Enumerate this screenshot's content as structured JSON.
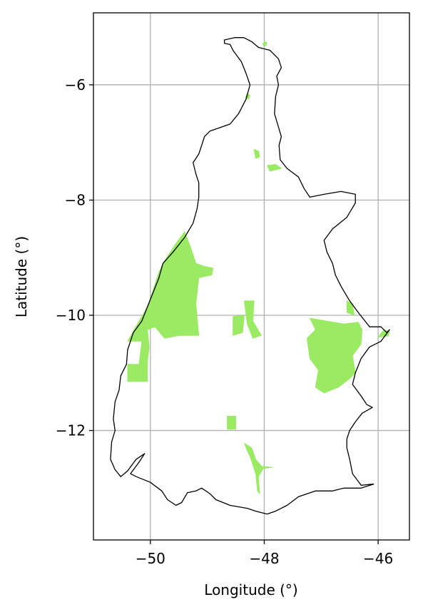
{
  "colors": {
    "background": "#ffffff",
    "protected_area_fill": "#9aea64",
    "boundary_stroke": "#000000",
    "grid": "#b0b0b0"
  },
  "chart_data": {
    "type": "map",
    "title": "",
    "xlabel": "Longitude (°)",
    "ylabel": "Latitude (°)",
    "xlim": [
      -51.0,
      -45.45
    ],
    "ylim": [
      -13.9,
      -4.75
    ],
    "grid": true,
    "x_ticks": [
      {
        "value": -50,
        "label": "−50"
      },
      {
        "value": -48,
        "label": "−48"
      },
      {
        "value": -46,
        "label": "−46"
      }
    ],
    "y_ticks": [
      {
        "value": -6,
        "label": "−6"
      },
      {
        "value": -8,
        "label": "−8"
      },
      {
        "value": -10,
        "label": "−10"
      },
      {
        "value": -12,
        "label": "−12"
      }
    ],
    "boundary": [
      [
        -48.7,
        -5.22
      ],
      [
        -48.52,
        -5.18
      ],
      [
        -48.36,
        -5.18
      ],
      [
        -48.22,
        -5.25
      ],
      [
        -48.1,
        -5.35
      ],
      [
        -47.9,
        -5.4
      ],
      [
        -47.75,
        -5.55
      ],
      [
        -47.7,
        -5.7
      ],
      [
        -47.78,
        -5.85
      ],
      [
        -47.75,
        -6.0
      ],
      [
        -47.8,
        -6.2
      ],
      [
        -47.82,
        -6.5
      ],
      [
        -47.76,
        -6.7
      ],
      [
        -47.7,
        -6.9
      ],
      [
        -47.74,
        -7.05
      ],
      [
        -47.72,
        -7.3
      ],
      [
        -47.6,
        -7.45
      ],
      [
        -47.4,
        -7.6
      ],
      [
        -47.3,
        -7.8
      ],
      [
        -47.2,
        -7.95
      ],
      [
        -46.95,
        -7.9
      ],
      [
        -46.65,
        -7.85
      ],
      [
        -46.4,
        -7.9
      ],
      [
        -46.4,
        -8.05
      ],
      [
        -46.55,
        -8.3
      ],
      [
        -46.8,
        -8.5
      ],
      [
        -46.95,
        -8.7
      ],
      [
        -46.9,
        -8.9
      ],
      [
        -46.8,
        -9.1
      ],
      [
        -46.75,
        -9.3
      ],
      [
        -46.65,
        -9.5
      ],
      [
        -46.5,
        -9.75
      ],
      [
        -46.35,
        -9.95
      ],
      [
        -46.15,
        -10.2
      ],
      [
        -45.95,
        -10.2
      ],
      [
        -45.85,
        -10.3
      ],
      [
        -45.8,
        -10.25
      ],
      [
        -45.95,
        -10.45
      ],
      [
        -46.15,
        -10.55
      ],
      [
        -46.3,
        -10.75
      ],
      [
        -46.4,
        -11.0
      ],
      [
        -46.45,
        -11.2
      ],
      [
        -46.3,
        -11.4
      ],
      [
        -46.2,
        -11.55
      ],
      [
        -46.1,
        -11.6
      ],
      [
        -46.28,
        -11.7
      ],
      [
        -46.4,
        -11.85
      ],
      [
        -46.5,
        -12.0
      ],
      [
        -46.55,
        -12.15
      ],
      [
        -46.55,
        -12.3
      ],
      [
        -46.5,
        -12.5
      ],
      [
        -46.45,
        -12.75
      ],
      [
        -46.3,
        -12.95
      ],
      [
        -46.08,
        -12.93
      ],
      [
        -46.3,
        -13.0
      ],
      [
        -46.6,
        -13.0
      ],
      [
        -46.8,
        -13.05
      ],
      [
        -47.1,
        -13.05
      ],
      [
        -47.4,
        -13.15
      ],
      [
        -47.6,
        -13.3
      ],
      [
        -47.8,
        -13.4
      ],
      [
        -47.95,
        -13.45
      ],
      [
        -48.15,
        -13.4
      ],
      [
        -48.3,
        -13.35
      ],
      [
        -48.6,
        -13.3
      ],
      [
        -48.85,
        -13.2
      ],
      [
        -48.95,
        -13.1
      ],
      [
        -49.1,
        -13.0
      ],
      [
        -49.2,
        -13.05
      ],
      [
        -49.35,
        -13.08
      ],
      [
        -49.45,
        -13.25
      ],
      [
        -49.55,
        -13.3
      ],
      [
        -49.7,
        -13.2
      ],
      [
        -49.8,
        -13.05
      ],
      [
        -50.0,
        -12.9
      ],
      [
        -50.25,
        -12.8
      ],
      [
        -50.35,
        -12.75
      ],
      [
        -50.2,
        -12.55
      ],
      [
        -50.1,
        -12.4
      ],
      [
        -50.25,
        -12.5
      ],
      [
        -50.4,
        -12.7
      ],
      [
        -50.52,
        -12.8
      ],
      [
        -50.62,
        -12.68
      ],
      [
        -50.7,
        -12.5
      ],
      [
        -50.68,
        -12.2
      ],
      [
        -50.62,
        -12.0
      ],
      [
        -50.65,
        -11.8
      ],
      [
        -50.62,
        -11.5
      ],
      [
        -50.55,
        -11.3
      ],
      [
        -50.52,
        -11.05
      ],
      [
        -50.42,
        -10.85
      ],
      [
        -50.4,
        -10.6
      ],
      [
        -50.3,
        -10.3
      ],
      [
        -50.15,
        -10.1
      ],
      [
        -50.05,
        -9.85
      ],
      [
        -49.95,
        -9.6
      ],
      [
        -49.85,
        -9.35
      ],
      [
        -49.78,
        -9.1
      ],
      [
        -49.6,
        -8.9
      ],
      [
        -49.4,
        -8.65
      ],
      [
        -49.25,
        -8.4
      ],
      [
        -49.18,
        -8.15
      ],
      [
        -49.15,
        -7.95
      ],
      [
        -49.15,
        -7.7
      ],
      [
        -49.2,
        -7.55
      ],
      [
        -49.25,
        -7.35
      ],
      [
        -49.15,
        -7.2
      ],
      [
        -49.1,
        -7.05
      ],
      [
        -49.05,
        -6.9
      ],
      [
        -48.95,
        -6.8
      ],
      [
        -48.8,
        -6.75
      ],
      [
        -48.6,
        -6.68
      ],
      [
        -48.45,
        -6.5
      ],
      [
        -48.32,
        -6.25
      ],
      [
        -48.25,
        -6.0
      ],
      [
        -48.32,
        -5.8
      ],
      [
        -48.4,
        -5.6
      ],
      [
        -48.55,
        -5.4
      ],
      [
        -48.6,
        -5.3
      ],
      [
        -48.7,
        -5.28
      ]
    ],
    "protected_areas": [
      {
        "region": "western",
        "polygon": [
          [
            -49.4,
            -8.55
          ],
          [
            -49.3,
            -8.8
          ],
          [
            -49.2,
            -9.1
          ],
          [
            -49.05,
            -9.15
          ],
          [
            -48.9,
            -9.18
          ],
          [
            -48.92,
            -9.3
          ],
          [
            -49.15,
            -9.35
          ],
          [
            -49.2,
            -9.8
          ],
          [
            -49.15,
            -10.35
          ],
          [
            -49.5,
            -10.35
          ],
          [
            -49.75,
            -10.4
          ],
          [
            -49.92,
            -10.2
          ],
          [
            -50.05,
            -10.25
          ],
          [
            -50.02,
            -10.55
          ],
          [
            -50.05,
            -10.8
          ],
          [
            -50.05,
            -11.15
          ],
          [
            -50.4,
            -11.15
          ],
          [
            -50.4,
            -10.85
          ],
          [
            -50.2,
            -10.85
          ],
          [
            -50.15,
            -10.45
          ],
          [
            -50.4,
            -10.45
          ],
          [
            -50.2,
            -10.1
          ],
          [
            -50.05,
            -9.85
          ],
          [
            -49.95,
            -9.55
          ],
          [
            -49.85,
            -9.25
          ],
          [
            -49.75,
            -9.05
          ],
          [
            -49.55,
            -8.75
          ]
        ]
      },
      {
        "region": "eastern",
        "polygon": [
          [
            -47.2,
            -10.05
          ],
          [
            -46.9,
            -10.1
          ],
          [
            -46.6,
            -10.15
          ],
          [
            -46.35,
            -10.12
          ],
          [
            -46.28,
            -10.25
          ],
          [
            -46.3,
            -10.5
          ],
          [
            -46.45,
            -10.7
          ],
          [
            -46.4,
            -11.0
          ],
          [
            -46.5,
            -11.1
          ],
          [
            -46.7,
            -11.25
          ],
          [
            -46.95,
            -11.35
          ],
          [
            -47.1,
            -11.25
          ],
          [
            -47.05,
            -10.95
          ],
          [
            -47.2,
            -10.75
          ],
          [
            -47.25,
            -10.4
          ],
          [
            -47.1,
            -10.25
          ]
        ]
      },
      {
        "region": "far-east",
        "polygon": [
          [
            -45.9,
            -10.25
          ],
          [
            -45.8,
            -10.28
          ],
          [
            -45.82,
            -10.36
          ],
          [
            -46.0,
            -10.38
          ]
        ]
      },
      {
        "region": "east-river",
        "polygon": [
          [
            -46.55,
            -9.75
          ],
          [
            -46.45,
            -9.8
          ],
          [
            -46.42,
            -10.0
          ],
          [
            -46.55,
            -9.95
          ]
        ]
      },
      {
        "region": "central-strip",
        "polygon": [
          [
            -48.35,
            -9.75
          ],
          [
            -48.18,
            -9.75
          ],
          [
            -48.2,
            -10.1
          ],
          [
            -48.05,
            -10.35
          ],
          [
            -48.2,
            -10.4
          ],
          [
            -48.3,
            -10.15
          ]
        ]
      },
      {
        "region": "central-small",
        "polygon": [
          [
            -48.55,
            -10.02
          ],
          [
            -48.35,
            -10.0
          ],
          [
            -48.38,
            -10.3
          ],
          [
            -48.55,
            -10.35
          ]
        ]
      },
      {
        "region": "south-block",
        "polygon": [
          [
            -48.65,
            -11.75
          ],
          [
            -48.5,
            -11.75
          ],
          [
            -48.5,
            -11.98
          ],
          [
            -48.65,
            -11.98
          ]
        ]
      },
      {
        "region": "north-tip",
        "polygon": [
          [
            -48.0,
            -5.25
          ],
          [
            -47.95,
            -5.27
          ],
          [
            -47.98,
            -5.33
          ],
          [
            -48.03,
            -5.3
          ]
        ]
      },
      {
        "region": "north-1",
        "polygon": [
          [
            -48.3,
            -6.15
          ],
          [
            -48.25,
            -6.18
          ],
          [
            -48.28,
            -6.25
          ],
          [
            -48.33,
            -6.22
          ]
        ]
      },
      {
        "region": "north-2",
        "polygon": [
          [
            -48.18,
            -7.12
          ],
          [
            -48.1,
            -7.15
          ],
          [
            -48.08,
            -7.25
          ],
          [
            -48.15,
            -7.28
          ]
        ]
      },
      {
        "region": "north-3",
        "polygon": [
          [
            -47.95,
            -7.4
          ],
          [
            -47.8,
            -7.38
          ],
          [
            -47.7,
            -7.45
          ],
          [
            -47.9,
            -7.5
          ]
        ]
      },
      {
        "region": "south-river",
        "polygon": [
          [
            -48.35,
            -12.22
          ],
          [
            -48.22,
            -12.3
          ],
          [
            -48.15,
            -12.5
          ],
          [
            -48.05,
            -12.62
          ],
          [
            -47.85,
            -12.64
          ],
          [
            -48.02,
            -12.66
          ],
          [
            -48.1,
            -12.8
          ],
          [
            -48.08,
            -13.1
          ],
          [
            -48.12,
            -13.05
          ],
          [
            -48.15,
            -12.75
          ],
          [
            -48.25,
            -12.45
          ],
          [
            -48.3,
            -12.35
          ]
        ]
      }
    ]
  }
}
